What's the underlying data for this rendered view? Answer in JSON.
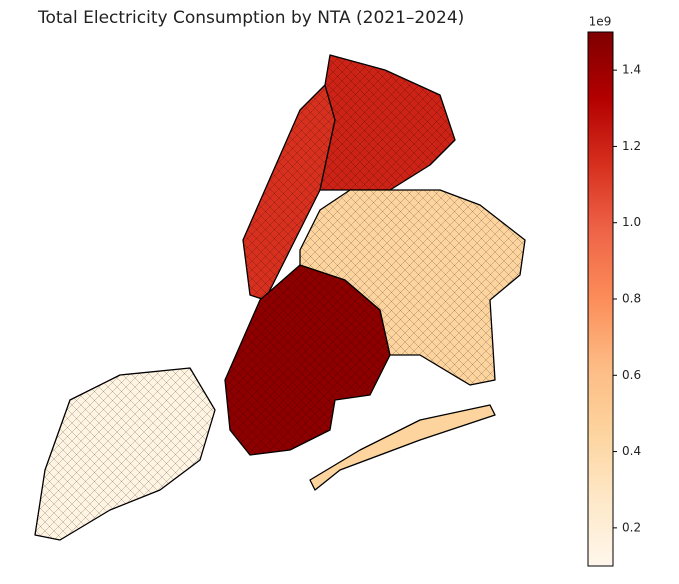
{
  "chart_data": {
    "type": "choropleth",
    "title": "Total Electricity Consumption by NTA (2021–2024)",
    "values": [
      1.15,
      1.2,
      1.45,
      0.45,
      0.15
    ],
    "cmap": "OrRd",
    "clim": [
      0.1,
      1.5
    ],
    "offset_label": "1e9",
    "cticks": [
      0.2,
      0.4,
      0.6,
      0.8,
      {
        "value": 1,
        "label": "1.0"
      },
      1.2,
      1.4
    ]
  }
}
